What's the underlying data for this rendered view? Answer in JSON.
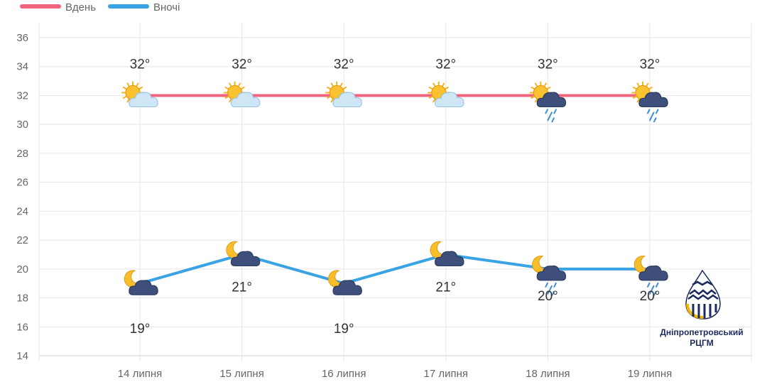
{
  "chart_data": {
    "type": "line",
    "categories": [
      "14 липня",
      "15 липня",
      "16 липня",
      "17 липня",
      "18 липня",
      "19 липня"
    ],
    "series": [
      {
        "name": "Вдень",
        "color": "#f0637d",
        "values": [
          32,
          32,
          32,
          32,
          32,
          32
        ],
        "labels": [
          "32°",
          "32°",
          "32°",
          "32°",
          "32°",
          "32°"
        ],
        "icons": [
          "sun-cloud-icon",
          "sun-cloud-icon",
          "sun-cloud-icon",
          "sun-cloud-icon",
          "sun-rain-cloud-icon",
          "sun-rain-cloud-icon"
        ]
      },
      {
        "name": "Вночі",
        "color": "#3aa3e3",
        "values": [
          19,
          21,
          19,
          21,
          20,
          20
        ],
        "labels": [
          "19°",
          "21°",
          "19°",
          "21°",
          "20°",
          "20°"
        ],
        "icons": [
          "moon-cloud-icon",
          "moon-cloud-icon",
          "moon-cloud-icon",
          "moon-cloud-icon",
          "moon-rain-cloud-icon",
          "moon-rain-cloud-icon"
        ]
      }
    ],
    "ylim": [
      14,
      36
    ],
    "yticks": [
      14,
      16,
      18,
      20,
      22,
      24,
      26,
      28,
      30,
      32,
      34,
      36
    ],
    "grid": true,
    "legend_position": "top-left",
    "xlabel": "",
    "ylabel": ""
  },
  "logo": {
    "line1": "Дніпропетровський",
    "line2": "РЦГМ",
    "colors": {
      "navy": "#1b2a5c",
      "gold": "#f2b705"
    }
  }
}
